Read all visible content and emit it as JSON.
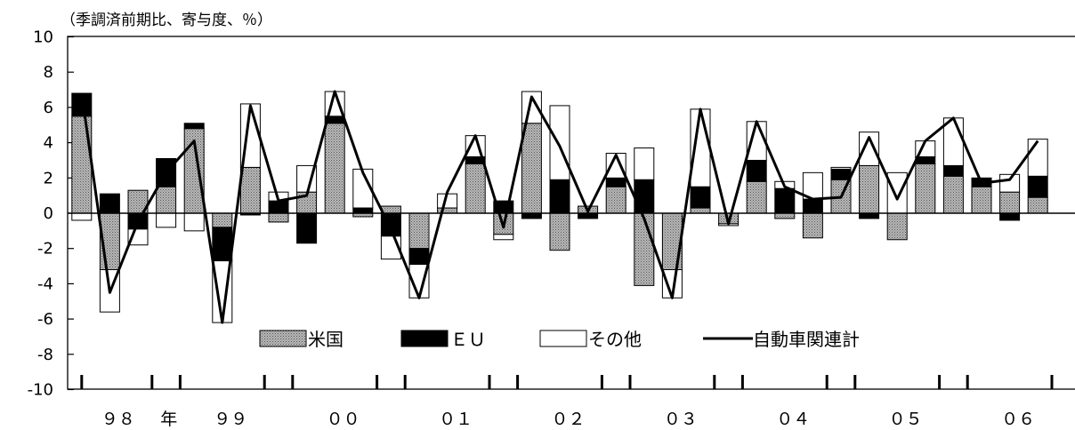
{
  "chart_data": {
    "type": "bar",
    "subtype": "stacked-bar-with-line",
    "ylabel": "（季調済前期比、寄与度、％）",
    "ylim": [
      -10,
      10
    ],
    "yticks": [
      10,
      8,
      6,
      4,
      2,
      0,
      -2,
      -4,
      -6,
      -8,
      -10
    ],
    "grid": false,
    "legend_position": "lower-center-inside",
    "colors": {
      "米国": "#8c8c8c",
      "ＥＵ": "#000000",
      "その他": "#ffffff",
      "自動車関連計": "#000000"
    },
    "series": [
      {
        "name": "米国",
        "values": [
          5.5,
          -3.2,
          1.3,
          1.5,
          4.8,
          -0.8,
          2.6,
          -0.5,
          1.2,
          5.1,
          -0.2,
          0.4,
          -2.0,
          0.3,
          2.8,
          -1.2,
          5.1,
          -2.1,
          0.4,
          1.5,
          -4.1,
          -3.2,
          0.3,
          -0.6,
          1.8,
          -0.3,
          -1.4,
          1.9,
          2.7,
          -1.5,
          2.8,
          2.1,
          1.5,
          1.2,
          0.9
        ]
      },
      {
        "name": "ＥＵ",
        "values": [
          1.3,
          1.1,
          -0.9,
          1.6,
          0.3,
          -1.9,
          -0.1,
          0.7,
          -1.7,
          0.4,
          0.3,
          -1.3,
          -0.9,
          0.0,
          0.4,
          0.7,
          -0.3,
          1.9,
          -0.3,
          0.5,
          1.9,
          0.0,
          1.2,
          0.0,
          1.2,
          1.4,
          0.8,
          0.6,
          -0.3,
          0.0,
          0.4,
          0.6,
          0.5,
          -0.4,
          1.2
        ]
      },
      {
        "name": "その他",
        "values": [
          -0.4,
          -2.4,
          -0.9,
          -0.8,
          -1.0,
          -3.5,
          3.6,
          0.5,
          1.5,
          1.4,
          2.2,
          -1.3,
          -1.9,
          0.8,
          1.2,
          -0.3,
          1.8,
          4.2,
          0.0,
          1.4,
          1.8,
          -1.6,
          4.4,
          -0.1,
          2.2,
          0.4,
          1.5,
          0.1,
          1.9,
          2.3,
          0.9,
          2.7,
          0.0,
          1.0,
          2.1
        ]
      },
      {
        "name": "自動車関連計",
        "values": [
          6.8,
          -4.5,
          -0.5,
          2.3,
          4.1,
          -6.2,
          6.1,
          0.7,
          1.0,
          6.9,
          2.3,
          -0.9,
          -4.8,
          1.2,
          4.4,
          -0.8,
          6.6,
          3.8,
          0.1,
          3.3,
          -0.3,
          -4.8,
          5.9,
          -0.6,
          5.2,
          1.5,
          0.8,
          0.9,
          4.3,
          0.8,
          4.1,
          5.4,
          1.7,
          1.9,
          4.1
        ]
      }
    ],
    "year_labels": [
      {
        "text": "９８",
        "start": 0
      },
      {
        "text": "年",
        "start": 3
      },
      {
        "text": "９９",
        "start": 4
      },
      {
        "text": "００",
        "start": 8
      },
      {
        "text": "０１",
        "start": 12
      },
      {
        "text": "０２",
        "start": 16
      },
      {
        "text": "０３",
        "start": 20
      },
      {
        "text": "０４",
        "start": 24
      },
      {
        "text": "０５",
        "start": 28
      },
      {
        "text": "０６",
        "start": 32
      }
    ],
    "year_boundaries": [
      3,
      4,
      7,
      8,
      11,
      12,
      15,
      16,
      19,
      20,
      23,
      24,
      27,
      28,
      31,
      32,
      35
    ]
  }
}
